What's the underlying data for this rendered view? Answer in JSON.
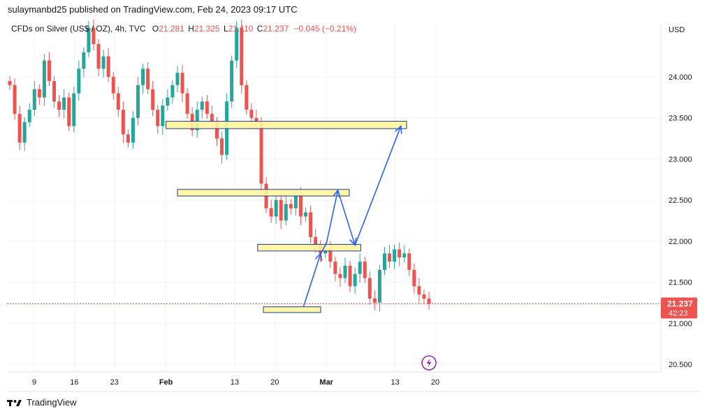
{
  "publisher": "sulaymanbd25 published on TradingView.com, Feb 24, 2023 09:17 UTC",
  "symbol_line": {
    "symbol": "CFDs on Silver (US$ / OZ), 4h, TVC",
    "open_label": "O",
    "open": "21.281",
    "high_label": "H",
    "high": "21.325",
    "low_label": "L",
    "low": "21.110",
    "close_label": "C",
    "close": "21.237",
    "change": "−0.045 (−0.21%)"
  },
  "price_axis": {
    "currency": "USD",
    "ticks": [
      "24.000",
      "23.500",
      "23.000",
      "22.500",
      "22.000",
      "21.500",
      "21.000",
      "20.500"
    ],
    "last_price": "21.237",
    "countdown": "42:23"
  },
  "time_axis": {
    "ticks": [
      "9",
      "16",
      "23",
      "Feb",
      "13",
      "20",
      "Mar",
      "13",
      "20"
    ]
  },
  "footer": {
    "brand": "TradingView"
  },
  "colors": {
    "up": "#26a69a",
    "down": "#ef5350",
    "zone_fill": "#fff59d",
    "zone_border": "#1e3a8a",
    "arrow": "#2962ff",
    "price_line": "#ef5350"
  },
  "chart_data": {
    "type": "candlestick",
    "interval": "4h",
    "ylim": [
      20.4,
      24.6
    ],
    "series": [
      {
        "name": "CFDs on Silver (US$ / OZ), 4h, TVC",
        "close": [
          23.9,
          23.55,
          23.2,
          23.45,
          23.6,
          23.85,
          23.75,
          24.2,
          23.95,
          23.7,
          23.6,
          23.75,
          23.4,
          23.8,
          24.1,
          24.3,
          24.6,
          24.4,
          24.1,
          24.25,
          24.0,
          23.8,
          23.6,
          23.3,
          23.2,
          23.5,
          23.9,
          24.1,
          23.85,
          23.6,
          23.4,
          23.65,
          23.75,
          23.9,
          24.05,
          23.8,
          23.55,
          23.35,
          23.6,
          23.7,
          23.55,
          23.45,
          23.25,
          23.05,
          23.7,
          24.2,
          24.6,
          23.9,
          23.6,
          23.5,
          23.45,
          22.7,
          22.4,
          22.3,
          22.5,
          22.25,
          22.45,
          22.4,
          22.55,
          22.3,
          22.35,
          22.05,
          21.95,
          21.85,
          21.9,
          21.75,
          21.6,
          21.55,
          21.7,
          21.45,
          21.6,
          21.75,
          21.55,
          21.3,
          21.25,
          21.65,
          21.85,
          21.75,
          21.9,
          21.8,
          21.85,
          21.65,
          21.45,
          21.35,
          21.3,
          21.237
        ]
      }
    ],
    "last_price": 21.237,
    "annotations": {
      "zones": [
        {
          "from_date": "Feb 1",
          "to_date": "Mar 15",
          "low": 23.37,
          "high": 23.46
        },
        {
          "from_date": "Feb 3",
          "to_date": "Mar 5",
          "low": 22.55,
          "high": 22.63
        },
        {
          "from_date": "Feb 17",
          "to_date": "Mar 7",
          "low": 21.88,
          "high": 21.96
        },
        {
          "from_date": "Feb 18",
          "to_date": "Feb 28",
          "low": 21.13,
          "high": 21.2
        }
      ],
      "projection_path": [
        {
          "date": "Feb 25",
          "price": 21.2
        },
        {
          "date": "Feb 28",
          "price": 21.85
        },
        {
          "date": "Mar 1",
          "price": 21.97
        },
        {
          "date": "Mar 3",
          "price": 22.62
        },
        {
          "date": "Mar 6",
          "price": 21.95
        },
        {
          "date": "Mar 14",
          "price": 23.4
        }
      ]
    }
  }
}
